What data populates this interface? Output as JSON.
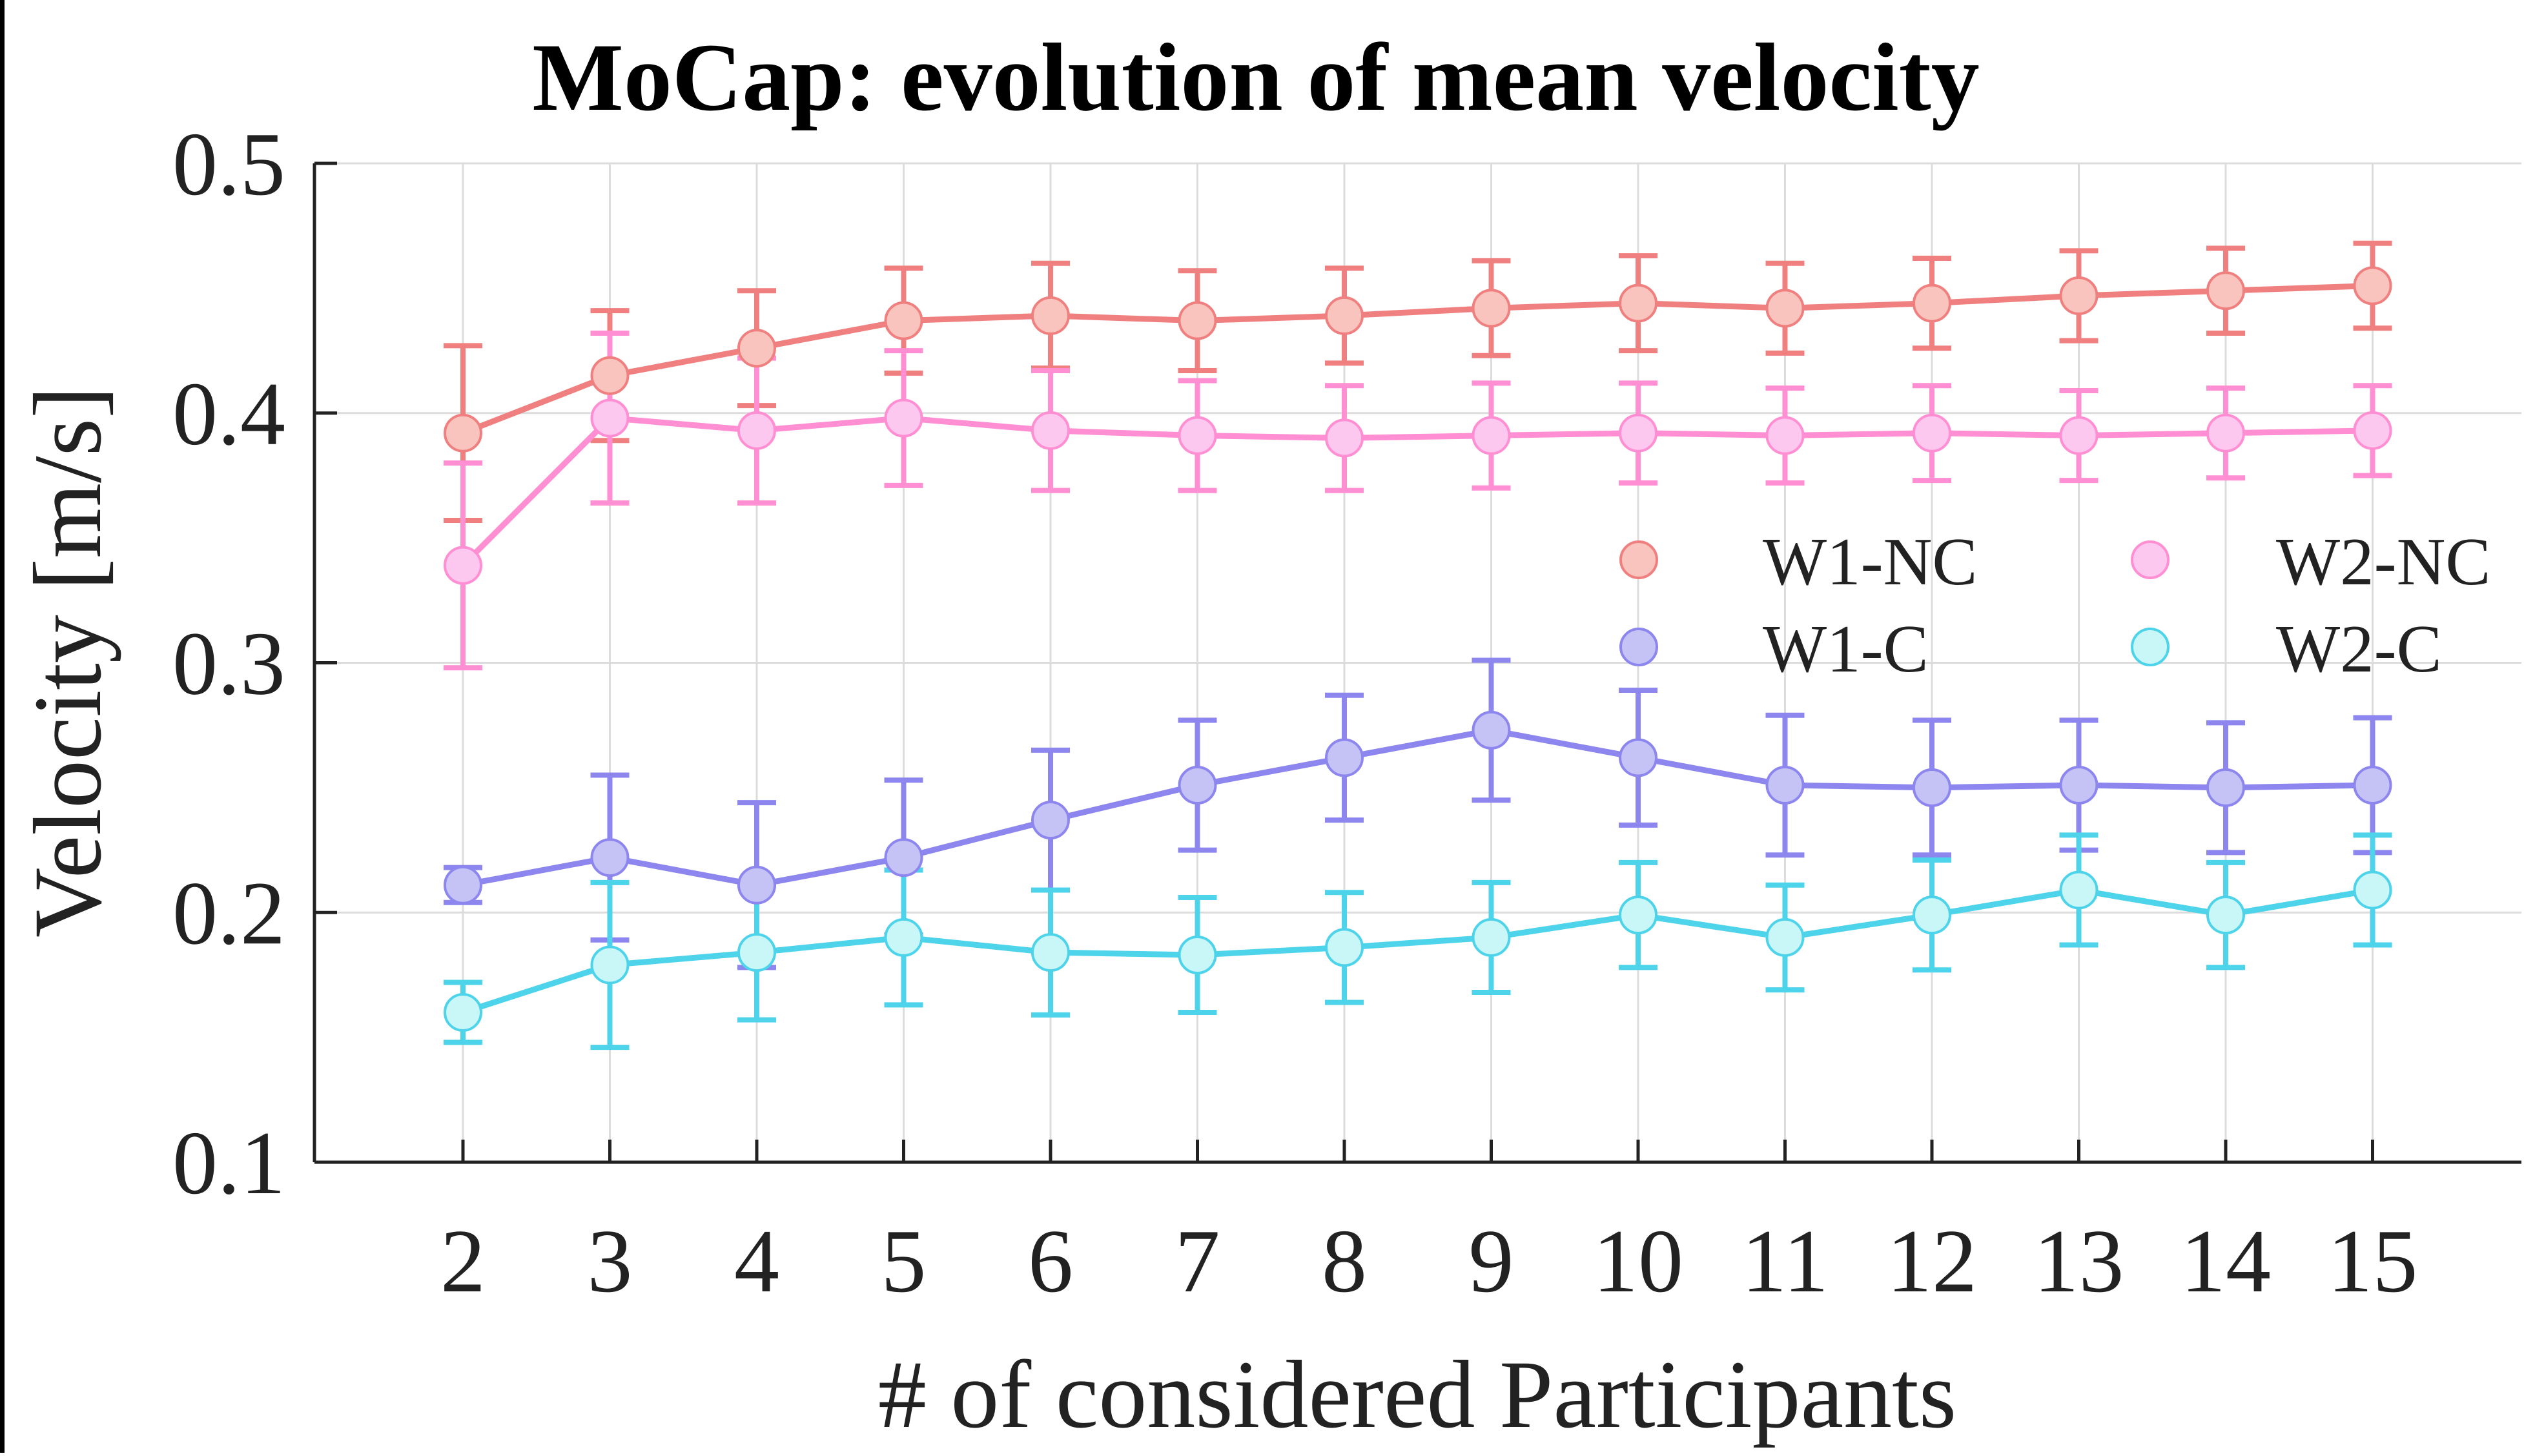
{
  "chart_data": {
    "type": "line",
    "title": "MoCap: evolution of mean velocity",
    "xlabel": "# of considered Participants",
    "ylabel": "Velocity [m/s]",
    "ylim": [
      0.1,
      0.5
    ],
    "yticks": [
      0.1,
      0.2,
      0.3,
      0.4,
      0.5
    ],
    "ytick_labels": [
      "0.1",
      "0.2",
      "0.3",
      "0.4",
      "0.5"
    ],
    "x": [
      2,
      3,
      4,
      5,
      6,
      7,
      8,
      9,
      10,
      11,
      12,
      13,
      14,
      15
    ],
    "xtick_labels": [
      "2",
      "3",
      "4",
      "5",
      "6",
      "7",
      "8",
      "9",
      "10",
      "11",
      "12",
      "13",
      "14",
      "15"
    ],
    "grid": true,
    "legend_position": "right",
    "series": [
      {
        "name": "W1-NC",
        "color": "#F08080",
        "fill": "#F9C4BE",
        "values": [
          0.392,
          0.415,
          0.426,
          0.437,
          0.439,
          0.437,
          0.439,
          0.442,
          0.444,
          0.442,
          0.444,
          0.447,
          0.449,
          0.451
        ],
        "errors": [
          0.035,
          0.026,
          0.023,
          0.021,
          0.021,
          0.02,
          0.019,
          0.019,
          0.019,
          0.018,
          0.018,
          0.018,
          0.017,
          0.017
        ]
      },
      {
        "name": "W2-NC",
        "color": "#FF8ED2",
        "fill": "#FCC8F0",
        "values": [
          0.339,
          0.398,
          0.393,
          0.398,
          0.393,
          0.391,
          0.39,
          0.391,
          0.392,
          0.391,
          0.392,
          0.391,
          0.392,
          0.393
        ],
        "errors": [
          0.041,
          0.034,
          0.029,
          0.027,
          0.024,
          0.022,
          0.021,
          0.021,
          0.02,
          0.019,
          0.019,
          0.018,
          0.018,
          0.018
        ]
      },
      {
        "name": "W1-C",
        "color": "#8C86EE",
        "fill": "#C5C3F5",
        "values": [
          0.211,
          0.222,
          0.211,
          0.222,
          0.237,
          0.251,
          0.262,
          0.273,
          0.262,
          0.251,
          0.25,
          0.251,
          0.25,
          0.251
        ],
        "errors": [
          0.007,
          0.033,
          0.033,
          0.031,
          0.028,
          0.026,
          0.025,
          0.028,
          0.027,
          0.028,
          0.027,
          0.026,
          0.026,
          0.027
        ]
      },
      {
        "name": "W2-C",
        "color": "#4DD3EA",
        "fill": "#C9F6F6",
        "values": [
          0.16,
          0.179,
          0.184,
          0.19,
          0.184,
          0.183,
          0.186,
          0.19,
          0.199,
          0.19,
          0.199,
          0.209,
          0.199,
          0.209
        ],
        "errors": [
          0.012,
          0.033,
          0.027,
          0.027,
          0.025,
          0.023,
          0.022,
          0.022,
          0.021,
          0.021,
          0.022,
          0.022,
          0.021,
          0.022
        ]
      }
    ]
  }
}
